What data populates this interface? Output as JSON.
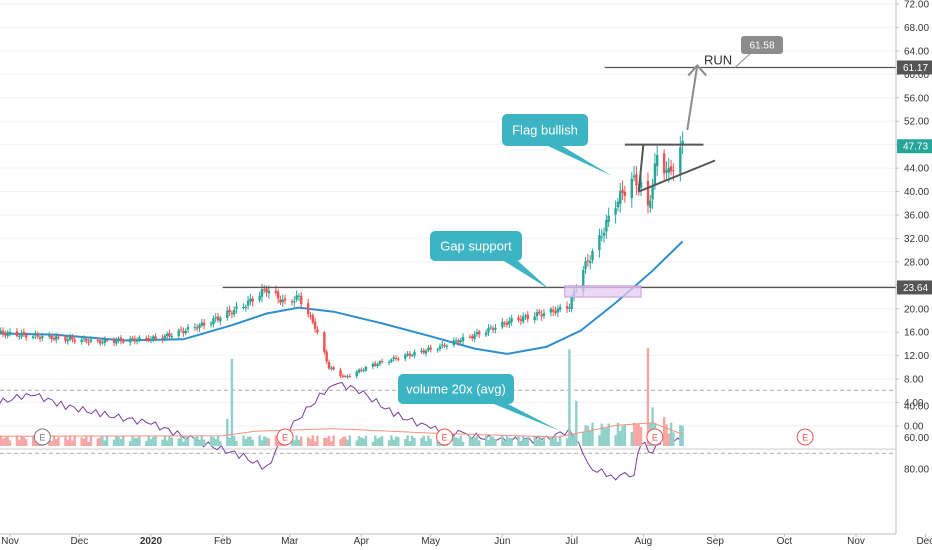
{
  "chart_data": {
    "type": "candlestick",
    "colors": {
      "up": "#26a69a",
      "down": "#ef5350",
      "ma": "#2e8fcf",
      "volume_ma": "#f2937e",
      "rsi_line": "#7b3fa0",
      "rsi_fill": "#f1dcf7",
      "callout": "#3cb4c4",
      "annotation_gray": "#8c8c8c",
      "level_line": "#555555",
      "axis_text": "#333333"
    },
    "x_axis": {
      "tick_labels": [
        "Nov",
        "Dec",
        "2020",
        "Feb",
        "Mar",
        "Apr",
        "May",
        "Jun",
        "Jul",
        "Aug",
        "Sep",
        "Oct",
        "Nov",
        "Dec"
      ]
    },
    "price_axis": {
      "ticks": [
        72.0,
        68.0,
        64.0,
        60.0,
        56.0,
        52.0,
        48.0,
        44.0,
        40.0,
        36.0,
        32.0,
        28.0,
        24.0,
        20.0,
        16.0,
        12.0,
        8.0,
        4.0,
        0.0
      ],
      "tick_labels": [
        "72.00",
        "68.00",
        "64.00",
        "60.00",
        "56.00",
        "52.00",
        "48.00",
        "44.00",
        "40.00",
        "36.00",
        "32.00",
        "28.00",
        "24.00",
        "20.00",
        "16.00",
        "12.00",
        "8.00",
        "4.00",
        "0.00"
      ],
      "range": [
        -2.5,
        74.5
      ]
    },
    "price_labels": [
      {
        "text": "61.17",
        "value": 61.17,
        "color": "#555555"
      },
      {
        "text": "47.73",
        "value": 47.73,
        "color": "#26a69a"
      },
      {
        "text": "23.64",
        "value": 23.64,
        "color": "#555555"
      }
    ],
    "price_keypoints": [
      [
        "2019-10-25",
        16.0
      ],
      [
        "2019-11-15",
        15.2
      ],
      [
        "2019-12-10",
        14.4
      ],
      [
        "2020-01-05",
        15.0
      ],
      [
        "2020-01-25",
        17.5
      ],
      [
        "2020-02-10",
        20.5
      ],
      [
        "2020-02-20",
        23.4
      ],
      [
        "2020-02-28",
        21.0
      ],
      [
        "2020-03-05",
        22.0
      ],
      [
        "2020-03-12",
        17.0
      ],
      [
        "2020-03-18",
        10.0
      ],
      [
        "2020-03-25",
        8.3
      ],
      [
        "2020-04-05",
        10.3
      ],
      [
        "2020-04-20",
        12.0
      ],
      [
        "2020-05-05",
        13.5
      ],
      [
        "2020-05-20",
        15.5
      ],
      [
        "2020-06-05",
        18.0
      ],
      [
        "2020-06-25",
        19.8
      ],
      [
        "2020-06-30",
        20.5
      ],
      [
        "2020-07-05",
        26.0
      ],
      [
        "2020-07-12",
        31.0
      ],
      [
        "2020-07-20",
        38.0
      ],
      [
        "2020-07-27",
        42.0
      ],
      [
        "2020-07-31",
        41.0
      ],
      [
        "2020-08-03",
        37.0
      ],
      [
        "2020-08-07",
        46.0
      ],
      [
        "2020-08-12",
        43.0
      ],
      [
        "2020-08-18",
        47.73
      ]
    ],
    "ma_line": [
      [
        "2019-10-25",
        15.8
      ],
      [
        "2019-11-20",
        15.6
      ],
      [
        "2019-12-20",
        14.6
      ],
      [
        "2020-01-15",
        14.8
      ],
      [
        "2020-02-05",
        17.2
      ],
      [
        "2020-02-20",
        19.2
      ],
      [
        "2020-03-05",
        20.2
      ],
      [
        "2020-03-20",
        19.5
      ],
      [
        "2020-04-10",
        17.5
      ],
      [
        "2020-05-01",
        15.3
      ],
      [
        "2020-05-20",
        13.2
      ],
      [
        "2020-06-03",
        12.3
      ],
      [
        "2020-06-20",
        13.5
      ],
      [
        "2020-07-05",
        16.3
      ],
      [
        "2020-07-20",
        21.0
      ],
      [
        "2020-08-05",
        26.5
      ],
      [
        "2020-08-18",
        31.5
      ]
    ],
    "volume": {
      "spikes": [
        {
          "date": "2019-11-13",
          "value": 2.2
        },
        {
          "date": "2020-02-03",
          "value": 4.2
        },
        {
          "date": "2020-02-05",
          "value": 13.5
        },
        {
          "date": "2020-06-30",
          "value": 15.0
        },
        {
          "date": "2020-07-03",
          "value": 7.0
        },
        {
          "date": "2020-07-29",
          "value": 3.5
        },
        {
          "date": "2020-08-03",
          "value": 15.2
        },
        {
          "date": "2020-08-05",
          "value": 6.0
        },
        {
          "date": "2020-08-10",
          "value": 4.5
        }
      ],
      "baseline": 1.1
    },
    "volume_ma": [
      [
        "2019-10-25",
        1.5
      ],
      [
        "2020-02-01",
        1.6
      ],
      [
        "2020-02-15",
        2.3
      ],
      [
        "2020-03-20",
        2.7
      ],
      [
        "2020-05-01",
        2.0
      ],
      [
        "2020-06-25",
        1.4
      ],
      [
        "2020-07-05",
        2.1
      ],
      [
        "2020-07-20",
        3.2
      ],
      [
        "2020-08-05",
        3.6
      ],
      [
        "2020-08-18",
        1.8
      ]
    ],
    "earnings_markers": [
      {
        "date": "2019-11-15",
        "label": "E",
        "color": "#7a7a7a"
      },
      {
        "date": "2020-02-28",
        "label": "E",
        "color": "#ef5350"
      },
      {
        "date": "2020-05-07",
        "label": "E",
        "color": "#ef5350"
      },
      {
        "date": "2020-08-06",
        "label": "E",
        "color": "#ef5350"
      },
      {
        "date": "2020-10-10",
        "label": "E",
        "color": "#ef5350"
      }
    ],
    "rsi": {
      "ticks": [
        80.0,
        60.0,
        40.0
      ],
      "tick_labels": [
        "80.00",
        "60.00",
        "40.00"
      ],
      "overbought": 70,
      "oversold": 30,
      "points": [
        [
          "2019-10-25",
          39
        ],
        [
          "2019-11-10",
          32
        ],
        [
          "2019-11-25",
          40
        ],
        [
          "2019-12-10",
          45
        ],
        [
          "2020-01-01",
          51
        ],
        [
          "2020-01-20",
          62
        ],
        [
          "2020-02-10",
          72
        ],
        [
          "2020-02-20",
          80
        ],
        [
          "2020-02-28",
          57
        ],
        [
          "2020-03-10",
          40
        ],
        [
          "2020-03-20",
          25
        ],
        [
          "2020-03-31",
          30
        ],
        [
          "2020-04-15",
          45
        ],
        [
          "2020-05-01",
          54
        ],
        [
          "2020-05-15",
          58
        ],
        [
          "2020-06-01",
          62
        ],
        [
          "2020-06-20",
          61
        ],
        [
          "2020-06-30",
          55
        ],
        [
          "2020-07-10",
          80
        ],
        [
          "2020-07-20",
          85
        ],
        [
          "2020-07-28",
          82
        ],
        [
          "2020-07-31",
          63
        ],
        [
          "2020-08-05",
          70
        ],
        [
          "2020-08-10",
          58
        ],
        [
          "2020-08-18",
          64
        ]
      ]
    },
    "annotations": {
      "resistance_level": 23.64,
      "target_level": 61.17,
      "flag_top": 48.0,
      "gap_box": {
        "from": "2020-06-28",
        "to": "2020-07-31",
        "low": 22.0,
        "high": 23.9
      },
      "run_label": "RUN",
      "run_value": "61.58",
      "callouts": [
        {
          "key": "flag",
          "text": "Flag bullish"
        },
        {
          "key": "gap",
          "text": "Gap support"
        },
        {
          "key": "volume",
          "text": "volume 20x (avg)"
        }
      ]
    }
  }
}
